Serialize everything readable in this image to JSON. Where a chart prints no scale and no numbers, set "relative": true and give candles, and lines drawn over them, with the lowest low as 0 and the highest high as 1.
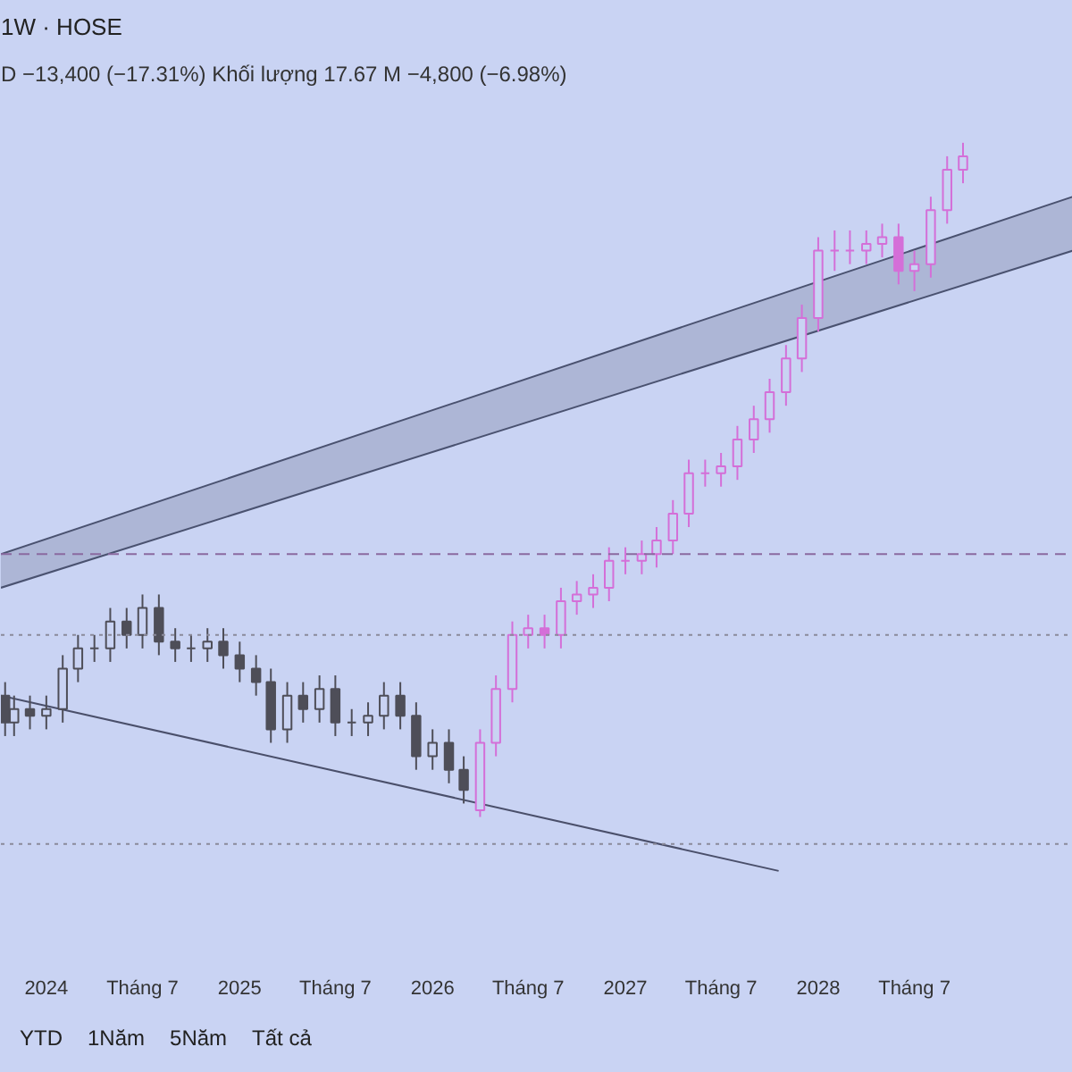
{
  "chart_data": {
    "type": "candlestick",
    "relative": true,
    "title": "1W · HOSE",
    "subtitle": "D   −13,400 (−17.31%)   Khối lượng 17.67 M   −4,800 (−6.98%)",
    "xlim": [
      "2023-10-07",
      "2029-04-27"
    ],
    "xticks": [
      {
        "value": "2024-01",
        "label": "2024"
      },
      {
        "value": "2024-07",
        "label": "Tháng 7"
      },
      {
        "value": "2025-01",
        "label": "2025"
      },
      {
        "value": "2025-07",
        "label": "Tháng 7"
      },
      {
        "value": "2026-01",
        "label": "2026"
      },
      {
        "value": "2026-07",
        "label": "Tháng 7"
      },
      {
        "value": "2027-01",
        "label": "2027"
      },
      {
        "value": "2027-07",
        "label": "Tháng 7"
      },
      {
        "value": "2028-01",
        "label": "2028"
      },
      {
        "value": "2028-07",
        "label": "Tháng 7"
      }
    ],
    "tick_labels": "x",
    "grid": false,
    "series": [
      {
        "type": "line",
        "color": "#4a5270",
        "x": [
          "2023-10-07",
          "2029-04-27"
        ],
        "values": [
          null,
          null
        ],
        "lower": [
          0.34,
          0.84
        ],
        "upper": [
          0.39,
          0.92
        ]
      },
      {
        "type": "line",
        "color": "#4a5270",
        "x": [
          "2023-10-07",
          "2029-04-27"
        ],
        "values": [
          0.34,
          0.84
        ]
      },
      {
        "type": "line",
        "color": "#4a5270",
        "x": [
          "2023-10-07",
          "2029-04-27"
        ],
        "values": [
          0.39,
          0.92
        ]
      },
      {
        "type": "line",
        "color": "#4a4f6a",
        "x": [
          "2023-10-07",
          "2027-10-18"
        ],
        "values": [
          0.18,
          -0.08
        ]
      },
      {
        "color": "#4e4e58",
        "x": [
          "2023-10-15",
          "2023-11",
          "2023-12",
          "2024-01",
          "2024-02",
          "2024-03",
          "2024-04",
          "2024-05",
          "2024-06",
          "2024-07",
          "2024-08",
          "2024-09",
          "2024-10",
          "2024-11",
          "2024-12",
          "2025-01",
          "2025-02",
          "2025-03",
          "2025-04",
          "2025-05",
          "2025-06",
          "2025-07",
          "2025-08",
          "2025-09",
          "2025-10",
          "2025-11",
          "2025-12",
          "2026-01",
          "2026-02",
          "2026-03"
        ],
        "ohlc": [
          [
            0.18,
            0.2,
            0.12,
            0.14
          ],
          [
            0.14,
            0.18,
            0.12,
            0.16
          ],
          [
            0.16,
            0.18,
            0.13,
            0.15
          ],
          [
            0.15,
            0.18,
            0.13,
            0.16
          ],
          [
            0.16,
            0.24,
            0.14,
            0.22
          ],
          [
            0.22,
            0.27,
            0.2,
            0.25
          ],
          [
            0.25,
            0.27,
            0.23,
            0.25
          ],
          [
            0.25,
            0.31,
            0.23,
            0.29
          ],
          [
            0.29,
            0.31,
            0.25,
            0.27
          ],
          [
            0.27,
            0.33,
            0.25,
            0.31
          ],
          [
            0.31,
            0.33,
            0.24,
            0.26
          ],
          [
            0.26,
            0.28,
            0.23,
            0.25
          ],
          [
            0.25,
            0.27,
            0.23,
            0.25
          ],
          [
            0.25,
            0.28,
            0.23,
            0.26
          ],
          [
            0.26,
            0.28,
            0.22,
            0.24
          ],
          [
            0.24,
            0.26,
            0.2,
            0.22
          ],
          [
            0.22,
            0.24,
            0.18,
            0.2
          ],
          [
            0.2,
            0.22,
            0.11,
            0.13
          ],
          [
            0.13,
            0.2,
            0.11,
            0.18
          ],
          [
            0.18,
            0.2,
            0.14,
            0.16
          ],
          [
            0.16,
            0.21,
            0.14,
            0.19
          ],
          [
            0.19,
            0.21,
            0.12,
            0.14
          ],
          [
            0.14,
            0.16,
            0.12,
            0.14
          ],
          [
            0.14,
            0.17,
            0.12,
            0.15
          ],
          [
            0.15,
            0.2,
            0.13,
            0.18
          ],
          [
            0.18,
            0.2,
            0.13,
            0.15
          ],
          [
            0.15,
            0.17,
            0.07,
            0.09
          ],
          [
            0.09,
            0.13,
            0.07,
            0.11
          ],
          [
            0.11,
            0.13,
            0.05,
            0.07
          ],
          [
            0.07,
            0.09,
            0.02,
            0.04
          ]
        ]
      },
      {
        "color": "#d46fd8",
        "x": [
          "2026-04",
          "2026-05",
          "2026-06",
          "2026-07",
          "2026-08",
          "2026-09",
          "2026-10",
          "2026-11",
          "2026-12",
          "2027-01",
          "2027-02",
          "2027-03",
          "2027-04",
          "2027-05",
          "2027-06",
          "2027-07",
          "2027-08",
          "2027-09",
          "2027-10",
          "2027-11",
          "2027-12",
          "2028-01",
          "2028-02",
          "2028-03",
          "2028-04",
          "2028-05",
          "2028-06",
          "2028-07",
          "2028-08",
          "2028-09",
          "2028-10"
        ],
        "ohlc": [
          [
            0.01,
            0.13,
            0.0,
            0.11
          ],
          [
            0.11,
            0.21,
            0.09,
            0.19
          ],
          [
            0.19,
            0.29,
            0.17,
            0.27
          ],
          [
            0.27,
            0.3,
            0.25,
            0.28
          ],
          [
            0.28,
            0.3,
            0.25,
            0.27
          ],
          [
            0.27,
            0.34,
            0.25,
            0.32
          ],
          [
            0.32,
            0.35,
            0.3,
            0.33
          ],
          [
            0.33,
            0.36,
            0.31,
            0.34
          ],
          [
            0.34,
            0.4,
            0.32,
            0.38
          ],
          [
            0.38,
            0.4,
            0.36,
            0.38
          ],
          [
            0.38,
            0.41,
            0.36,
            0.39
          ],
          [
            0.39,
            0.43,
            0.37,
            0.41
          ],
          [
            0.41,
            0.47,
            0.39,
            0.45
          ],
          [
            0.45,
            0.53,
            0.43,
            0.51
          ],
          [
            0.51,
            0.53,
            0.49,
            0.51
          ],
          [
            0.51,
            0.54,
            0.49,
            0.52
          ],
          [
            0.52,
            0.58,
            0.5,
            0.56
          ],
          [
            0.56,
            0.61,
            0.54,
            0.59
          ],
          [
            0.59,
            0.65,
            0.57,
            0.63
          ],
          [
            0.63,
            0.7,
            0.61,
            0.68
          ],
          [
            0.68,
            0.76,
            0.66,
            0.74
          ],
          [
            0.74,
            0.86,
            0.72,
            0.84
          ],
          [
            0.84,
            0.87,
            0.81,
            0.84
          ],
          [
            0.84,
            0.87,
            0.82,
            0.84
          ],
          [
            0.84,
            0.87,
            0.82,
            0.85
          ],
          [
            0.85,
            0.88,
            0.83,
            0.86
          ],
          [
            0.86,
            0.88,
            0.79,
            0.81
          ],
          [
            0.81,
            0.84,
            0.78,
            0.82
          ],
          [
            0.82,
            0.92,
            0.8,
            0.9
          ],
          [
            0.9,
            0.98,
            0.88,
            0.96
          ],
          [
            0.96,
            1.0,
            0.94,
            0.98
          ]
        ]
      }
    ],
    "ref_lines": [
      {
        "axis": "y",
        "value": 0.39,
        "line_style": "dashed",
        "color": "#8a6aa0"
      },
      {
        "axis": "y",
        "value": 0.27,
        "line_style": "dotted",
        "color": "#8a8a9a"
      },
      {
        "axis": "y",
        "value": -0.04,
        "line_style": "dotted",
        "color": "#8a8a9a"
      }
    ],
    "annotations": [
      "YTD",
      "1Năm",
      "5Năm",
      "Tất cả"
    ]
  }
}
